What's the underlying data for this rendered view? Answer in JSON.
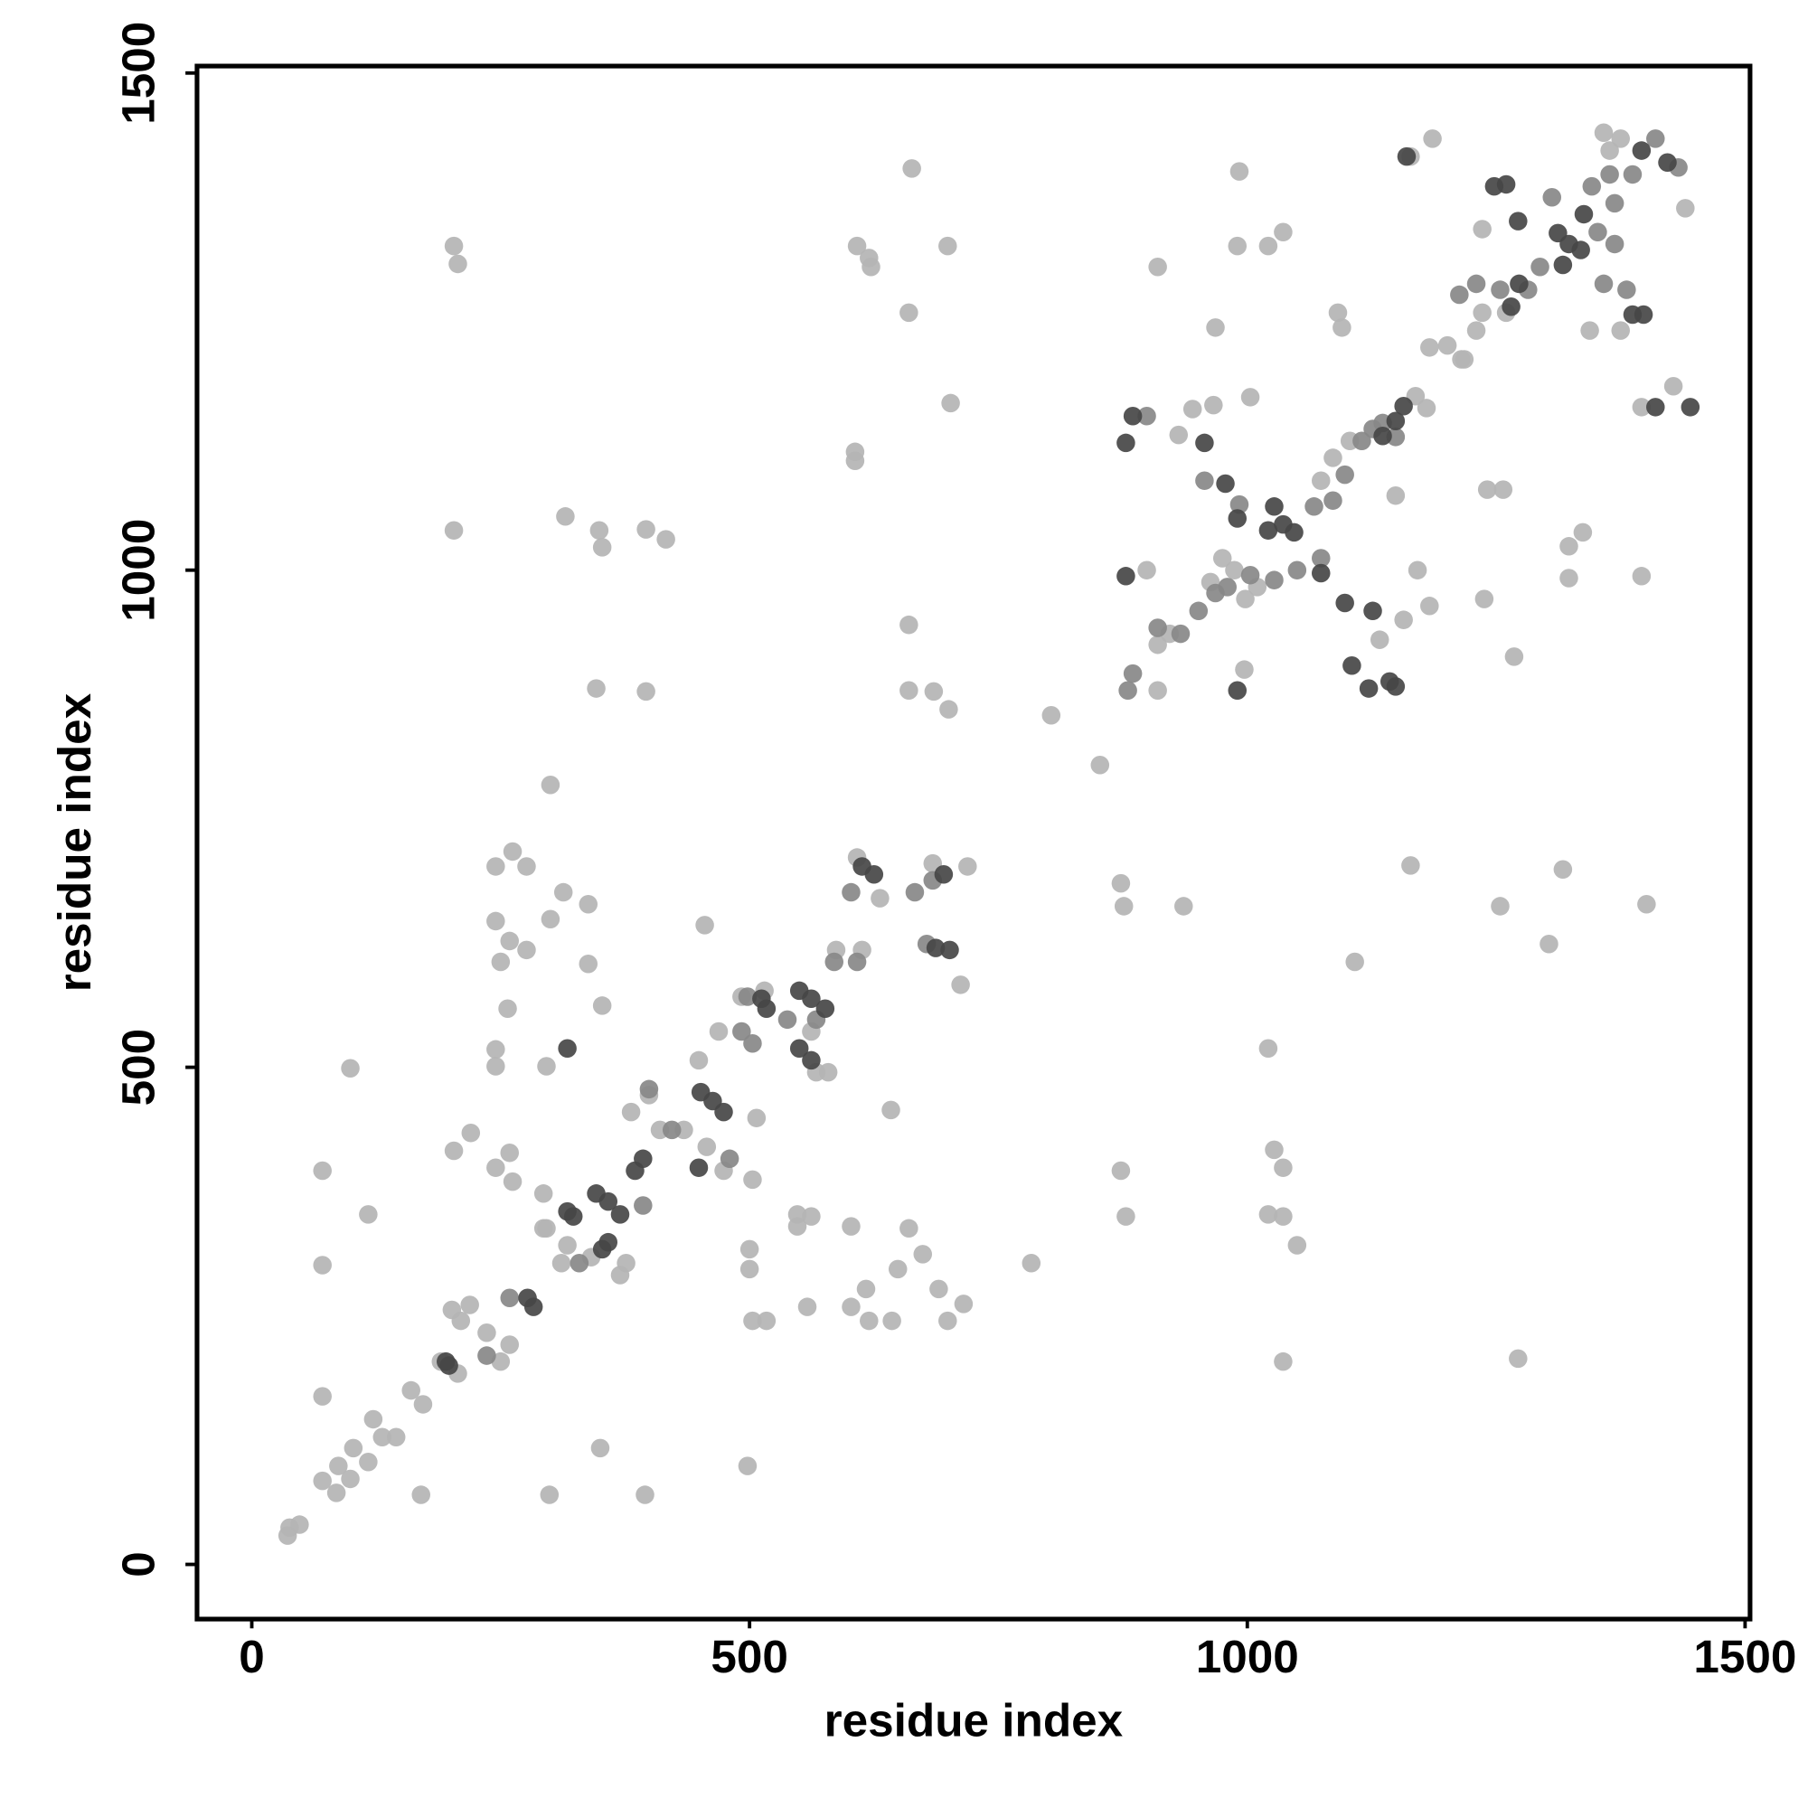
{
  "chart_data": {
    "type": "scatter",
    "xlabel": "residue index",
    "ylabel": "residue index",
    "xlim": [
      -55,
      1505
    ],
    "ylim": [
      -55,
      1507
    ],
    "xticks": [
      0,
      500,
      1000,
      1500
    ],
    "yticks": [
      0,
      500,
      1000,
      1500
    ],
    "grid": false,
    "series": [
      {
        "color": "#b4b4b4",
        "x": [
          38,
          48,
          36,
          71,
          85,
          87,
          99,
          102,
          117,
          122,
          131,
          145,
          160,
          172,
          170,
          71,
          71,
          71,
          117,
          99,
          203,
          220,
          201,
          219,
          207,
          190,
          203,
          207,
          203,
          300,
          313,
          300,
          296,
          338,
          338,
          352,
          315,
          349,
          352,
          346,
          396,
          416,
          396,
          245,
          262,
          276,
          245,
          259,
          250,
          276,
          257,
          245,
          245,
          259,
          245,
          262,
          293,
          296,
          317,
          311,
          210,
          236,
          259,
          250,
          299,
          350,
          395,
          498,
          455,
          449,
          507,
          503,
          500,
          500,
          503,
          517,
          548,
          562,
          548,
          558,
          602,
          602,
          617,
          620,
          643,
          649,
          660,
          674,
          690,
          699,
          715,
          642,
          608,
          620,
          622,
          660,
          663,
          699,
          702,
          606,
          606,
          660,
          660,
          685,
          700,
          783,
          803,
          852,
          873,
          876,
          873,
          878,
          936,
          1036,
          1021,
          1027,
          1036,
          1021,
          1036,
          1050,
          1108,
          1164,
          1254,
          1272,
          1303,
          1317,
          1401,
          1396,
          1268,
          1238,
          1183,
          1171,
          1133,
          1157,
          1149,
          1323,
          1323,
          1337,
          1241,
          1257,
          910,
          931,
          968,
          966,
          945,
          1003,
          899,
          997,
          992,
          990,
          1021,
          1036,
          910,
          1091,
          1095,
          1169,
          1180,
          1201,
          1215,
          1230,
          1236,
          1164,
          1186,
          1358,
          1375,
          1396,
          1428,
          1440,
          1344,
          910,
          922,
          963,
          975,
          987,
          1010,
          998,
          1074,
          1086,
          1103,
          1183,
          1218,
          1236,
          1260,
          1364,
          1375,
          381,
          399,
          410,
          434,
          457,
          474,
          469,
          492,
          515,
          562,
          579,
          567,
          587,
          613,
          608,
          631,
          684,
          719,
          712,
          293,
          341,
          376,
          370
        ],
        "y": [
          37,
          40,
          29,
          84,
          72,
          99,
          86,
          117,
          103,
          146,
          128,
          128,
          175,
          161,
          70,
          169,
          301,
          396,
          352,
          499,
          416,
          434,
          256,
          261,
          192,
          204,
          1326,
          1308,
          1040,
          784,
          676,
          649,
          501,
          604,
          664,
          562,
          1054,
          1040,
          1023,
          881,
          1041,
          1031,
          878,
          702,
          717,
          702,
          647,
          627,
          606,
          618,
          559,
          518,
          501,
          414,
          399,
          385,
          373,
          338,
          321,
          303,
          245,
          233,
          221,
          204,
          70,
          117,
          70,
          99,
          643,
          507,
          449,
          387,
          317,
          297,
          245,
          245,
          340,
          350,
          352,
          259,
          340,
          259,
          277,
          245,
          245,
          297,
          338,
          312,
          277,
          245,
          262,
          457,
          1326,
          1314,
          1305,
          1259,
          1404,
          1326,
          1168,
          1119,
          1110,
          945,
          879,
          878,
          860,
          303,
          854,
          804,
          685,
          662,
          396,
          350,
          662,
          204,
          519,
          417,
          399,
          352,
          350,
          321,
          606,
          703,
          662,
          207,
          624,
          699,
          664,
          994,
          913,
          971,
          964,
          1000,
          930,
          950,
          1075,
          992,
          1024,
          1038,
          1081,
          1081,
          879,
          1136,
          1244,
          1166,
          1162,
          1174,
          1000,
          900,
          1401,
          1326,
          1326,
          1340,
          1305,
          1259,
          1244,
          1175,
          1163,
          1226,
          1212,
          1241,
          1343,
          1416,
          1434,
          1440,
          1241,
          1164,
          1185,
          1364,
          1241,
          925,
          936,
          988,
          1012,
          1000,
          983,
          971,
          1090,
          1113,
          1130,
          1224,
          1212,
          1259,
          1259,
          1422,
          1434,
          455,
          472,
          437,
          437,
          420,
          396,
          536,
          571,
          577,
          536,
          495,
          495,
          618,
          618,
          711,
          670,
          705,
          702,
          583,
          338,
          309,
          303,
          291
        ]
      },
      {
        "color": "#888888",
        "x": [
          329,
          393,
          399,
          422,
          480,
          498,
          492,
          503,
          538,
          567,
          585,
          608,
          602,
          666,
          678,
          684,
          259,
          236,
          880,
          885,
          910,
          933,
          951,
          968,
          980,
          1003,
          1027,
          1050,
          1074,
          1086,
          1098,
          1115,
          1126,
          1136,
          1149,
          899,
          957,
          992,
          1067,
          1213,
          1230,
          1254,
          1294,
          1306,
          1346,
          1369,
          1364,
          1387,
          1410,
          1433,
          1282,
          1352,
          1369,
          1358,
          1381
        ],
        "y": [
          303,
          361,
          478,
          437,
          408,
          571,
          536,
          524,
          548,
          548,
          606,
          606,
          676,
          676,
          624,
          688,
          268,
          210,
          879,
          896,
          942,
          936,
          959,
          977,
          983,
          995,
          990,
          1000,
          1012,
          1070,
          1096,
          1130,
          1142,
          1148,
          1134,
          1155,
          1090,
          1066,
          1064,
          1277,
          1288,
          1282,
          1305,
          1375,
          1386,
          1369,
          1398,
          1398,
          1434,
          1405,
          1282,
          1340,
          1328,
          1288,
          1282
        ]
      },
      {
        "color": "#474747",
        "x": [
          195,
          198,
          277,
          283,
          317,
          317,
          323,
          346,
          358,
          370,
          352,
          358,
          385,
          393,
          451,
          463,
          474,
          449,
          512,
          517,
          550,
          562,
          576,
          550,
          562,
          613,
          625,
          695,
          701,
          687,
          878,
          885,
          878,
          990,
          957,
          978,
          990,
          1021,
          1036,
          1047,
          1027,
          1074,
          1098,
          1126,
          1105,
          1122,
          1143,
          1149,
          1136,
          1149,
          1157,
          1160,
          1248,
          1260,
          1272,
          1312,
          1323,
          1335,
          1317,
          1338,
          1387,
          1398,
          1410,
          1445,
          1265,
          1273,
          1396,
          1422
        ],
        "y": [
          204,
          200,
          268,
          259,
          519,
          355,
          350,
          373,
          365,
          352,
          317,
          324,
          396,
          408,
          475,
          466,
          455,
          399,
          569,
          559,
          577,
          569,
          559,
          519,
          507,
          702,
          694,
          694,
          618,
          620,
          1128,
          1155,
          994,
          879,
          1128,
          1087,
          1052,
          1040,
          1046,
          1038,
          1064,
          997,
          967,
          959,
          904,
          881,
          888,
          883,
          1135,
          1150,
          1165,
          1416,
          1386,
          1388,
          1351,
          1339,
          1328,
          1322,
          1307,
          1358,
          1257,
          1257,
          1164,
          1164,
          1265,
          1288,
          1422,
          1410
        ]
      }
    ]
  }
}
